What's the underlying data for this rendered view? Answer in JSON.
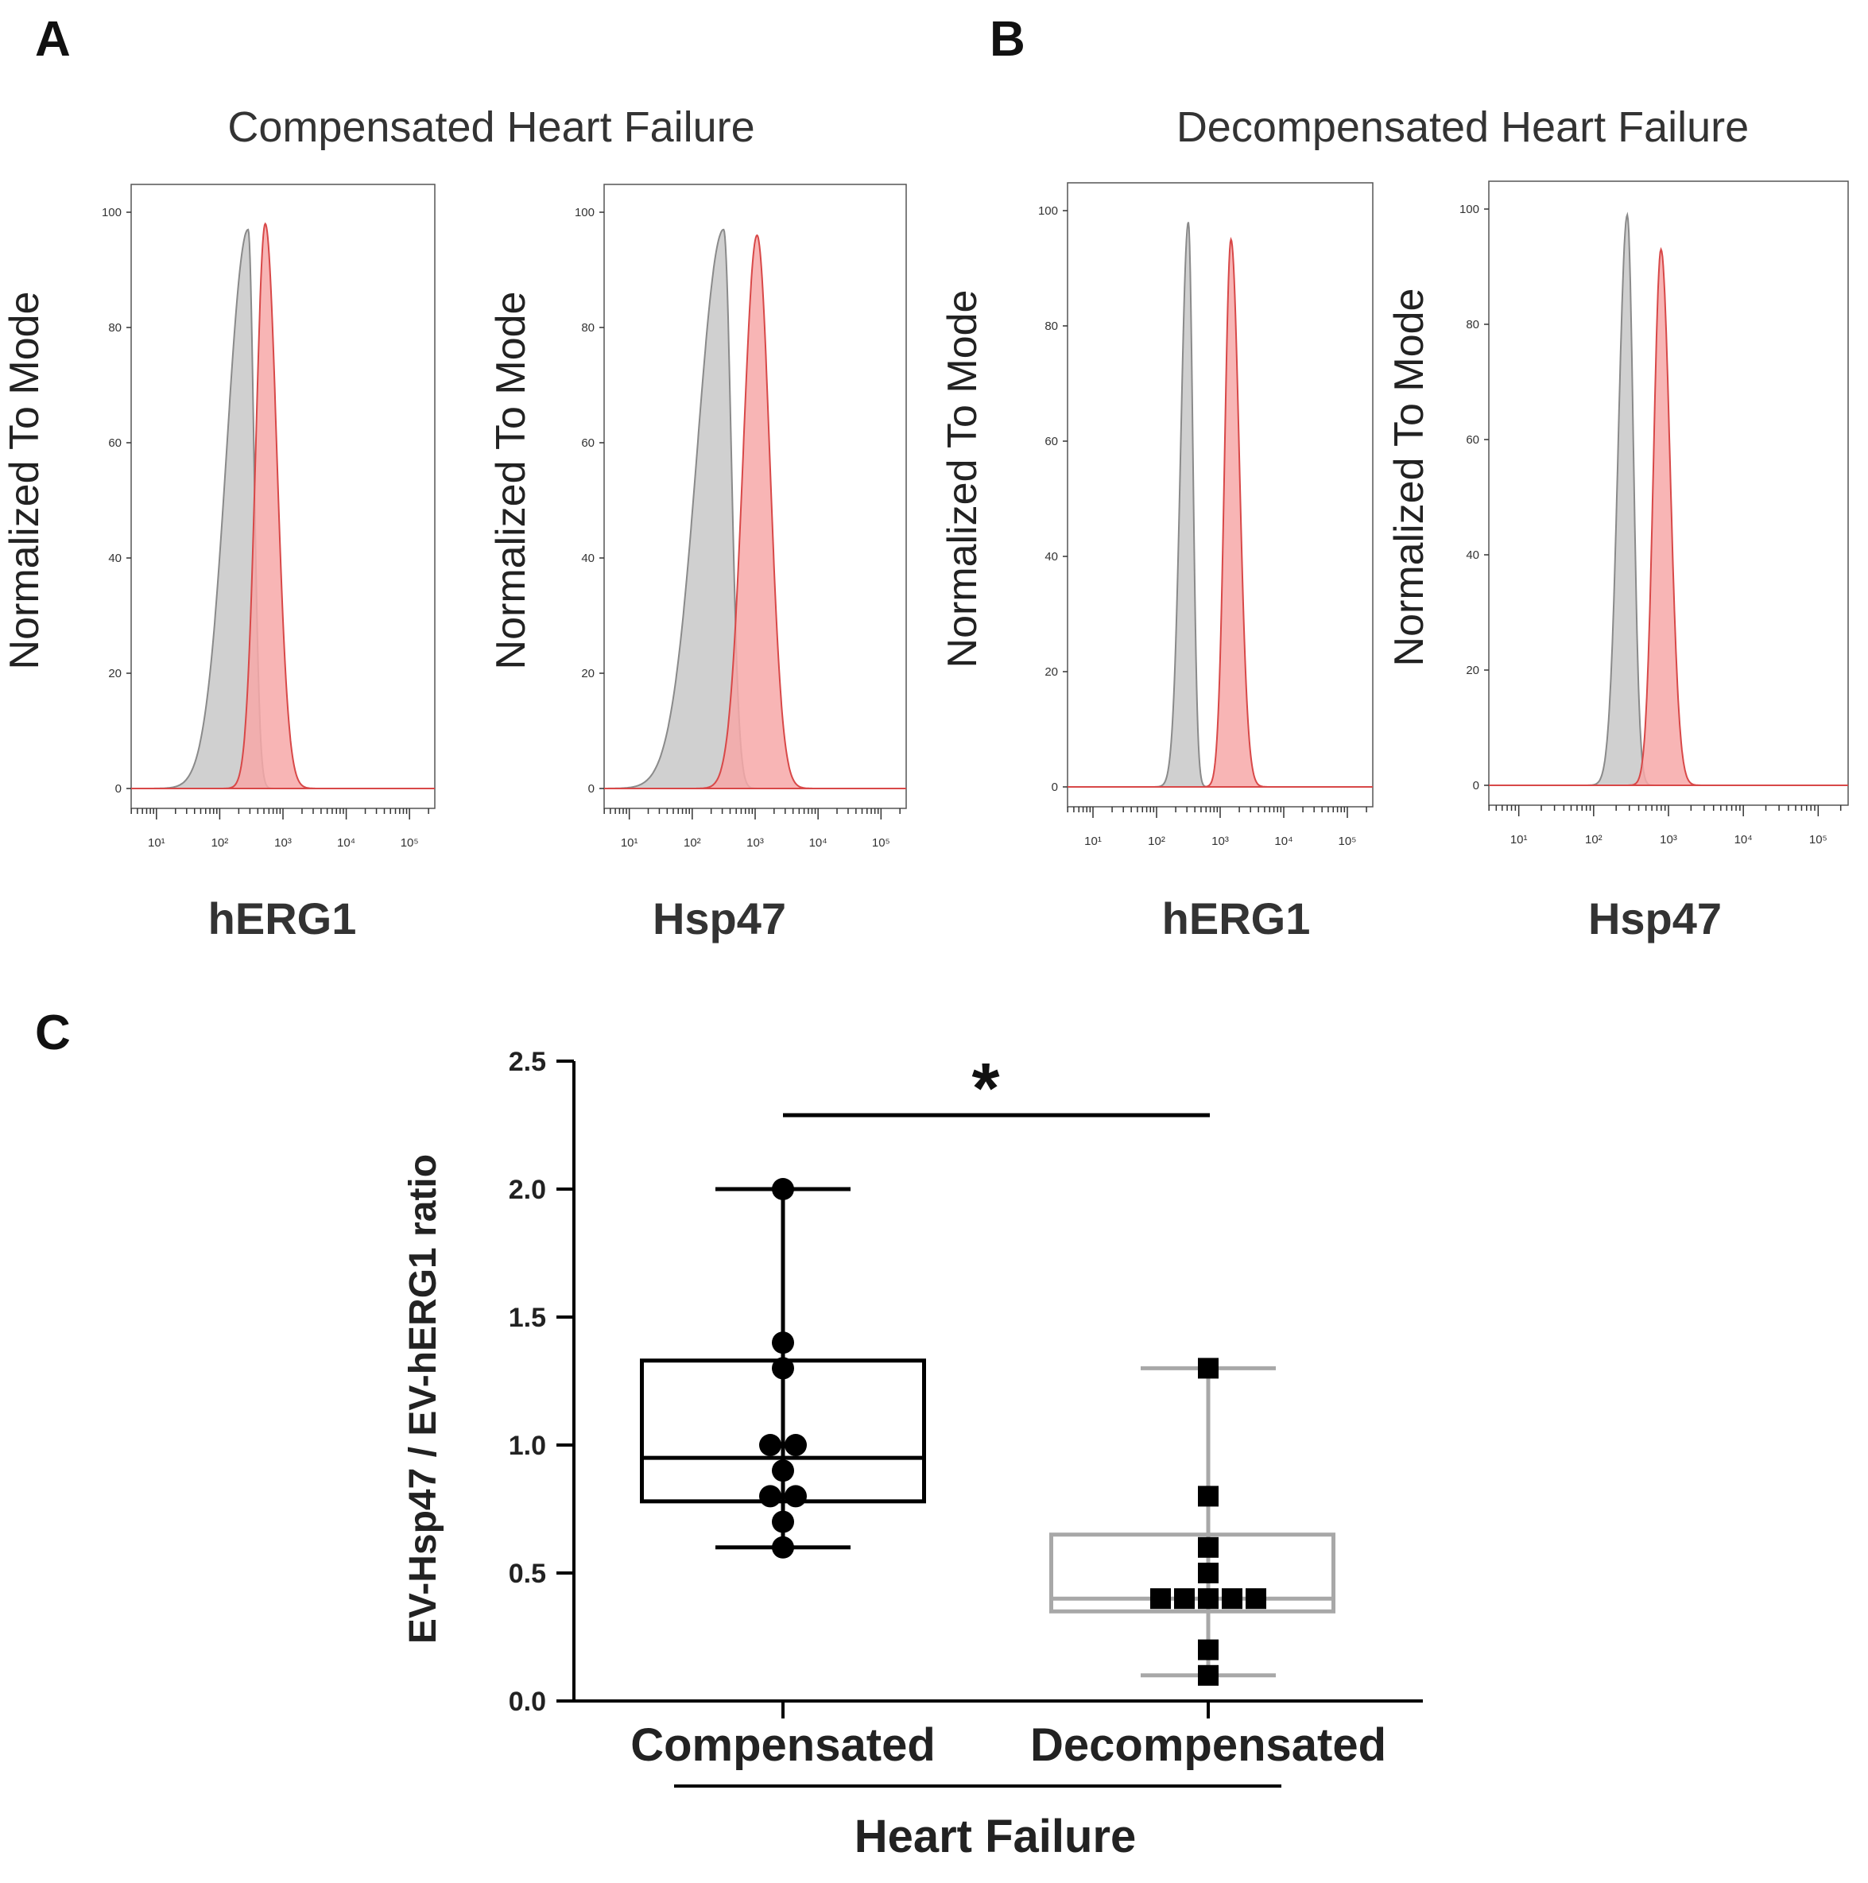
{
  "colors": {
    "control_fill": "#c8c8c8",
    "control_stroke": "#8a8a8a",
    "stain_fill": "#f7a8a8",
    "stain_stroke": "#d84848",
    "compensated": "#000000",
    "decompensated": "#a8a8a8"
  },
  "panels": {
    "a_letter": "A",
    "b_letter": "B",
    "c_letter": "C",
    "a_title": "Compensated Heart Failure",
    "b_title": "Decompensated Heart Failure"
  },
  "histograms": [
    {
      "group": "Compensated Heart Failure",
      "marker": "hERG1",
      "ylabel": "Normalized To Mode",
      "xlabel": "hERG1",
      "yticks": [
        "0",
        "20",
        "40",
        "60",
        "80",
        "100"
      ],
      "xticks": [
        "10¹",
        "10²",
        "10³",
        "10⁴",
        "10⁵"
      ],
      "control": {
        "peak_log10": 2.45,
        "peak_height": 97,
        "sigma_left": 0.34,
        "sigma_right": 0.09
      },
      "stain": {
        "peak_log10": 2.72,
        "peak_height": 98,
        "sigma_left": 0.15,
        "sigma_right": 0.18
      }
    },
    {
      "group": "Compensated Heart Failure",
      "marker": "Hsp47",
      "ylabel": "Normalized To Mode",
      "xlabel": "Hsp47",
      "yticks": [
        "0",
        "20",
        "40",
        "60",
        "80",
        "100"
      ],
      "xticks": [
        "10¹",
        "10²",
        "10³",
        "10⁴",
        "10⁵"
      ],
      "control": {
        "peak_log10": 2.5,
        "peak_height": 97,
        "sigma_left": 0.42,
        "sigma_right": 0.12
      },
      "stain": {
        "peak_log10": 3.03,
        "peak_height": 96,
        "sigma_left": 0.22,
        "sigma_right": 0.2
      }
    },
    {
      "group": "Decompensated Heart Failure",
      "marker": "hERG1",
      "ylabel": "Normalized To Mode",
      "xlabel": "hERG1",
      "yticks": [
        "0",
        "20",
        "40",
        "60",
        "80",
        "100"
      ],
      "xticks": [
        "10¹",
        "10²",
        "10³",
        "10⁴",
        "10⁵"
      ],
      "control": {
        "peak_log10": 2.5,
        "peak_height": 98,
        "sigma_left": 0.12,
        "sigma_right": 0.07
      },
      "stain": {
        "peak_log10": 3.17,
        "peak_height": 95,
        "sigma_left": 0.1,
        "sigma_right": 0.13
      }
    },
    {
      "group": "Decompensated Heart Failure",
      "marker": "Hsp47",
      "ylabel": "Normalized To Mode",
      "xlabel": "Hsp47",
      "yticks": [
        "0",
        "20",
        "40",
        "60",
        "80",
        "100"
      ],
      "xticks": [
        "10¹",
        "10²",
        "10³",
        "10⁴",
        "10⁵"
      ],
      "control": {
        "peak_log10": 2.45,
        "peak_height": 99,
        "sigma_left": 0.12,
        "sigma_right": 0.08
      },
      "stain": {
        "peak_log10": 2.9,
        "peak_height": 93,
        "sigma_left": 0.1,
        "sigma_right": 0.12
      }
    }
  ],
  "chart_data": {
    "type": "box",
    "title": "",
    "ylabel": "EV-Hsp47 / EV-hERG1 ratio",
    "xlabel": "Heart Failure",
    "ylim": [
      0,
      2.5
    ],
    "yticks": [
      "0.0",
      "0.5",
      "1.0",
      "1.5",
      "2.0",
      "2.5"
    ],
    "categories": [
      "Compensated",
      "Decompensated"
    ],
    "significance": "*",
    "series": [
      {
        "name": "Compensated",
        "marker": "circle",
        "min": 0.6,
        "q1": 0.78,
        "median": 0.95,
        "q3": 1.33,
        "max": 2.0,
        "points": [
          2.0,
          1.4,
          1.3,
          1.0,
          1.0,
          0.9,
          0.8,
          0.8,
          0.7,
          0.6
        ]
      },
      {
        "name": "Decompensated",
        "marker": "square",
        "min": 0.1,
        "q1": 0.35,
        "median": 0.4,
        "q3": 0.65,
        "max": 1.3,
        "points": [
          1.3,
          0.8,
          0.6,
          0.5,
          0.4,
          0.4,
          0.4,
          0.4,
          0.4,
          0.2,
          0.1
        ]
      }
    ]
  }
}
